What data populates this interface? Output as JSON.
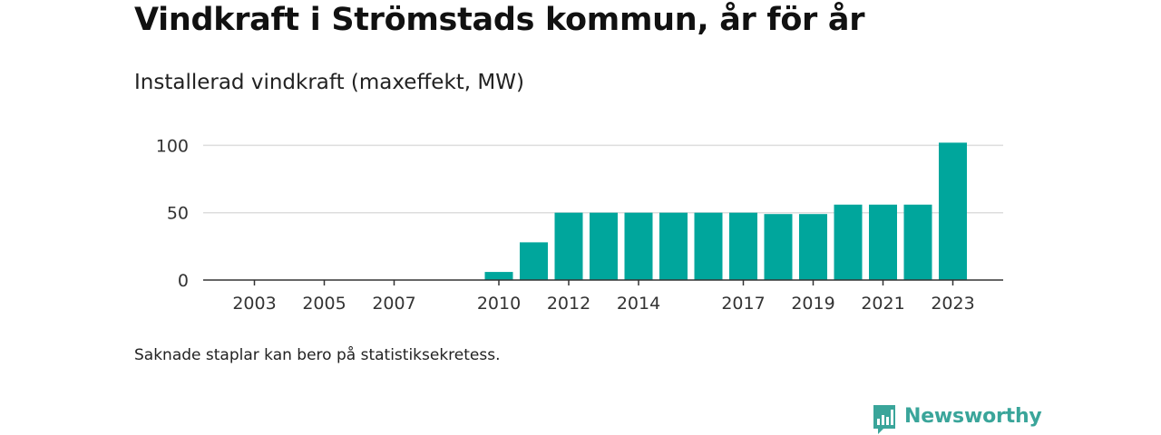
{
  "title": "Vindkraft i Strömstads kommun, år för år",
  "chart_data": {
    "type": "bar",
    "title": "Vindkraft i Strömstads kommun, år för år",
    "subtitle": "Installerad vindkraft (maxeffekt, MW)",
    "xlabel": "",
    "ylabel": "",
    "x": [
      2003,
      2004,
      2005,
      2006,
      2007,
      2008,
      2009,
      2010,
      2011,
      2012,
      2013,
      2014,
      2015,
      2016,
      2017,
      2018,
      2019,
      2020,
      2021,
      2022,
      2023
    ],
    "values": [
      null,
      null,
      null,
      null,
      null,
      null,
      null,
      6,
      28,
      50,
      50,
      50,
      50,
      50,
      50,
      49,
      49,
      56,
      56,
      56,
      102
    ],
    "x_tick_labels": [
      "2003",
      "2005",
      "2007",
      "2010",
      "2012",
      "2014",
      "2017",
      "2019",
      "2021",
      "2023"
    ],
    "y_ticks": [
      0,
      50,
      100
    ],
    "ylim": [
      0,
      100
    ],
    "grid": true,
    "bar_color": "#00a69c"
  },
  "footnote": "Saknade staplar kan bero på statistiksekretess.",
  "brand": {
    "name": "Newsworthy",
    "color": "#3aa59a",
    "icon": "newsworthy-logo-icon"
  }
}
